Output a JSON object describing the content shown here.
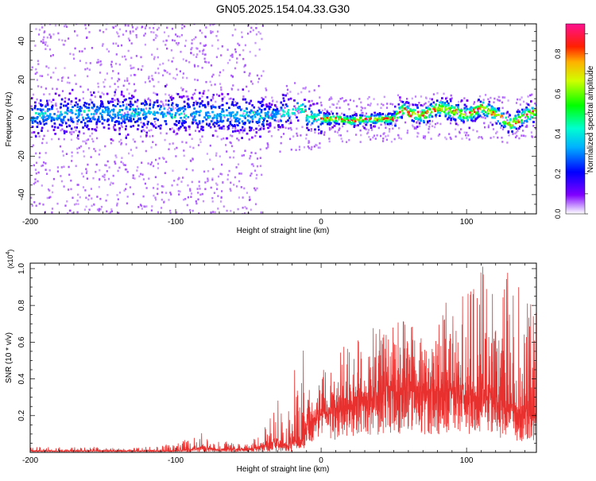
{
  "title": "GN05.2025.154.04.33.G30",
  "chart_data": [
    {
      "type": "heatmap",
      "xlabel": "Height of straight line (km)",
      "ylabel": "Frequency (Hz)",
      "xlim": [
        -200,
        148
      ],
      "ylim": [
        -50,
        49
      ],
      "xticks": [
        -200,
        -100,
        0,
        100
      ],
      "yticks": [
        -40,
        -20,
        0,
        20,
        40
      ],
      "colorbar": {
        "label": "Normalized spectral amplitude",
        "range": [
          0,
          0.95
        ],
        "ticks": [
          "0.0",
          "0.2",
          "0.4",
          "0.6",
          "0.8"
        ],
        "colormap": "rainbow (violet to magenta)"
      },
      "center_track": {
        "description_free": true,
        "x": [
          -200,
          -150,
          -100,
          -60,
          -35,
          -20,
          -15,
          -12,
          -10,
          0,
          10,
          20,
          30,
          40,
          50,
          55,
          60,
          70,
          80,
          90,
          100,
          110,
          120,
          130,
          140,
          148
        ],
        "y": [
          2,
          3,
          3,
          2,
          2,
          4,
          6,
          4,
          1,
          0,
          0,
          -1,
          0,
          0,
          0,
          5,
          3,
          2,
          6,
          4,
          2,
          6,
          2,
          -3,
          2,
          4
        ]
      }
    },
    {
      "type": "line",
      "xlabel": "Height of straight line (km)",
      "ylabel": "SNR (10 * v/v)",
      "y_multiplier_label": "(x10",
      "y_multiplier_exp": "4",
      "y_multiplier_close": ")",
      "xlim": [
        -200,
        148
      ],
      "ylim": [
        0,
        1.03
      ],
      "xticks": [
        -200,
        -100,
        0,
        100
      ],
      "yticks": [
        0.2,
        0.4,
        0.6,
        0.8,
        1.0
      ],
      "color": "#e8312f",
      "envelope": {
        "x": [
          -200,
          -120,
          -100,
          -90,
          -80,
          -70,
          -60,
          -50,
          -45,
          -40,
          -35,
          -30,
          -25,
          -20,
          -15,
          -12,
          -10,
          -5,
          0,
          10,
          20,
          30,
          40,
          50,
          60,
          70,
          80,
          90,
          100,
          110,
          120,
          130,
          140,
          148
        ],
        "base": [
          0.01,
          0.01,
          0.01,
          0.02,
          0.03,
          0.02,
          0.02,
          0.02,
          0.03,
          0.04,
          0.05,
          0.06,
          0.05,
          0.07,
          0.05,
          0.06,
          0.15,
          0.18,
          0.2,
          0.22,
          0.25,
          0.28,
          0.3,
          0.32,
          0.33,
          0.32,
          0.33,
          0.32,
          0.3,
          0.3,
          0.26,
          0.22,
          0.2,
          0.18
        ],
        "peak": [
          0.03,
          0.03,
          0.05,
          0.08,
          0.12,
          0.07,
          0.05,
          0.05,
          0.1,
          0.15,
          0.25,
          0.36,
          0.28,
          0.55,
          0.3,
          0.6,
          0.35,
          0.42,
          0.45,
          0.55,
          0.62,
          0.7,
          0.75,
          0.68,
          0.82,
          0.7,
          0.78,
          0.85,
          0.9,
          1.03,
          0.88,
          1.0,
          0.85,
          0.78
        ]
      }
    }
  ]
}
